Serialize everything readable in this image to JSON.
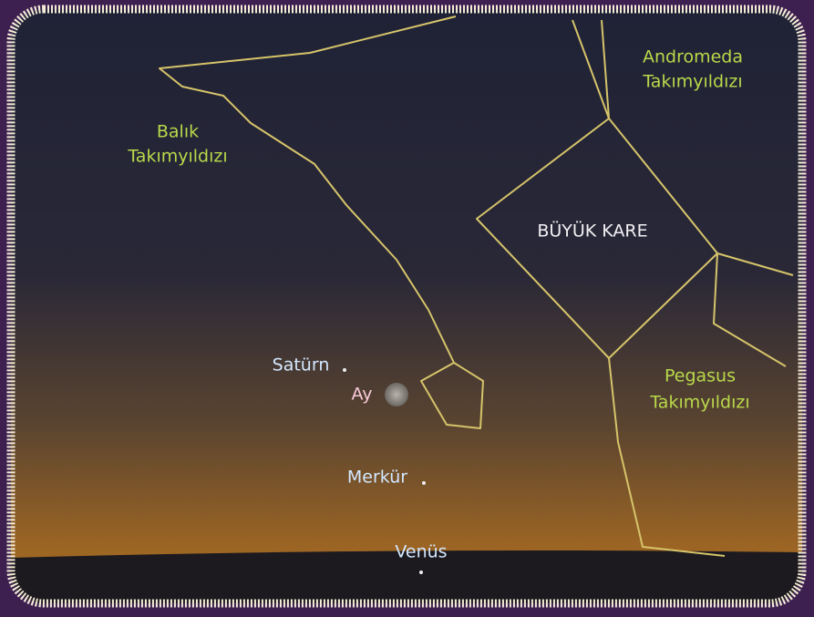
{
  "constellations": [
    {
      "lines": [
        "Andromeda",
        "Takımyıldızı"
      ]
    },
    {
      "lines": [
        "Balık",
        "Takımyıldızı"
      ]
    },
    {
      "lines": [
        "Pegasus",
        "Takımyıldızı"
      ]
    }
  ],
  "asterism": "BÜYÜK KARE",
  "bodies": [
    {
      "label": "Satürn"
    },
    {
      "label": "Ay"
    },
    {
      "label": "Merkür"
    },
    {
      "label": "Venüs"
    }
  ]
}
